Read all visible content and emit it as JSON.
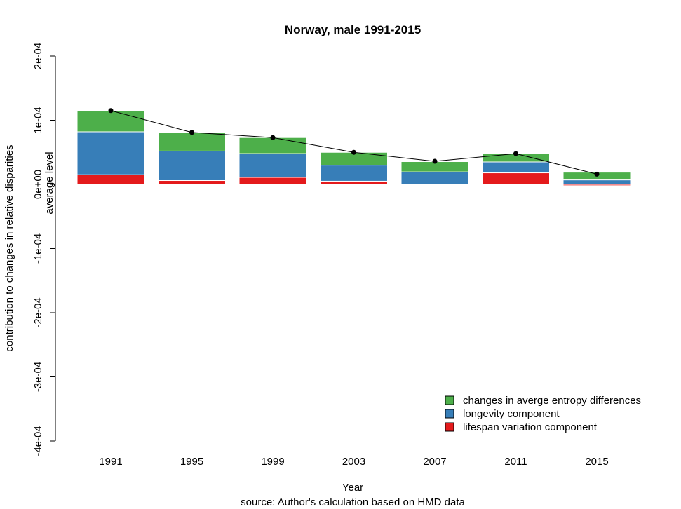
{
  "chart_data": {
    "type": "bar",
    "stacked": true,
    "title": "Norway, male 1991-2015",
    "xlabel": "Year",
    "ylabel": "contribution to changes in relative disparities",
    "ylabel_secondary": "average level",
    "caption": "source: Author's calculation based on HMD data",
    "ylim": [
      -0.0004,
      0.0002
    ],
    "yticks": [
      0.0002,
      0.0001,
      0.0,
      -0.0001,
      -0.0002,
      -0.0003,
      -0.0004
    ],
    "ytick_labels": [
      "2e-04",
      "1e-04",
      "0e+00",
      "-1e-04",
      "-2e-04",
      "-3e-04",
      "-4e-04"
    ],
    "categories": [
      "1991",
      "1995",
      "1999",
      "2003",
      "2007",
      "2011",
      "2015"
    ],
    "series": [
      {
        "name": "lifespan variation component",
        "color": "#E41A1C",
        "values": [
          1.5e-05,
          6e-06,
          1.1e-05,
          5e-06,
          5e-07,
          1.8e-05,
          -2e-06
        ]
      },
      {
        "name": "longevity component",
        "color": "#377EB8",
        "values": [
          6.7e-05,
          4.6e-05,
          3.7e-05,
          2.5e-05,
          1.9e-05,
          1.7e-05,
          7e-06
        ]
      },
      {
        "name": "changes in averge entropy differences",
        "color": "#4DAF4A",
        "values": [
          3.3e-05,
          2.9e-05,
          2.5e-05,
          2e-05,
          1.6e-05,
          1.3e-05,
          1.2e-05
        ]
      }
    ],
    "line": {
      "name": "average level",
      "color": "#000000",
      "values": [
        0.000115,
        8.1e-05,
        7.3e-05,
        5e-05,
        3.6e-05,
        4.8e-05,
        1.6e-05
      ]
    },
    "legend": {
      "position": "bottom-right",
      "entries": [
        {
          "label": "changes in averge entropy differences",
          "color": "#4DAF4A"
        },
        {
          "label": "longevity component",
          "color": "#377EB8"
        },
        {
          "label": "lifespan variation component",
          "color": "#E41A1C"
        }
      ]
    }
  }
}
